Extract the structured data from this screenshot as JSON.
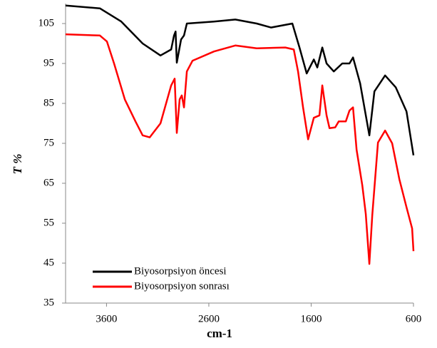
{
  "chart_data": {
    "type": "line",
    "xlabel": "cm-1",
    "ylabel": "T %",
    "xlim": [
      4000,
      600
    ],
    "xticks": [
      3600,
      2600,
      1600,
      600
    ],
    "ylim": [
      35,
      110
    ],
    "yticks": [
      35,
      45,
      55,
      65,
      75,
      85,
      95,
      105
    ],
    "legend": "lower left",
    "series": [
      {
        "name": "Biyosorpsiyon öncesi",
        "color": "#000000",
        "x": [
          4000,
          3665,
          3456,
          3247,
          3073,
          2968,
          2940,
          2925,
          2913,
          2871,
          2843,
          2815,
          2550,
          2341,
          2132,
          1993,
          1784,
          1714,
          1644,
          1574,
          1540,
          1491,
          1449,
          1379,
          1296,
          1226,
          1191,
          1121,
          1031,
          982,
          877,
          773,
          668,
          600
        ],
        "values": [
          109.5,
          108.8,
          105.5,
          100,
          97,
          98.5,
          102,
          103,
          95.2,
          101,
          102,
          105,
          105.5,
          106,
          105,
          104,
          105,
          99,
          92.5,
          96,
          94,
          99,
          95,
          93,
          95,
          95,
          96.5,
          90,
          77,
          88,
          92,
          89,
          83,
          72
        ]
      },
      {
        "name": "Biyosorpsiyon sonrası",
        "color": "#ff0000",
        "x": [
          4000,
          3665,
          3596,
          3526,
          3421,
          3317,
          3247,
          3178,
          3073,
          2968,
          2934,
          2913,
          2885,
          2864,
          2843,
          2815,
          2759,
          2550,
          2341,
          2132,
          1853,
          1770,
          1728,
          1679,
          1630,
          1574,
          1519,
          1491,
          1449,
          1421,
          1365,
          1330,
          1261,
          1226,
          1191,
          1156,
          1100,
          1066,
          1031,
          1003,
          947,
          877,
          808,
          738,
          668,
          613,
          600
        ],
        "values": [
          102.3,
          102,
          100.5,
          95,
          86,
          80.5,
          77,
          76.5,
          80,
          89.5,
          91.2,
          77.6,
          86,
          87,
          84,
          93,
          95.7,
          98,
          99.5,
          98.8,
          99,
          98.5,
          93,
          84,
          76,
          81.4,
          82,
          89.5,
          82,
          78.8,
          79,
          80.5,
          80.5,
          83.2,
          84,
          73.4,
          64.5,
          57.3,
          44.8,
          57,
          75.2,
          78.2,
          75,
          66,
          59,
          53.7,
          48
        ]
      }
    ]
  }
}
